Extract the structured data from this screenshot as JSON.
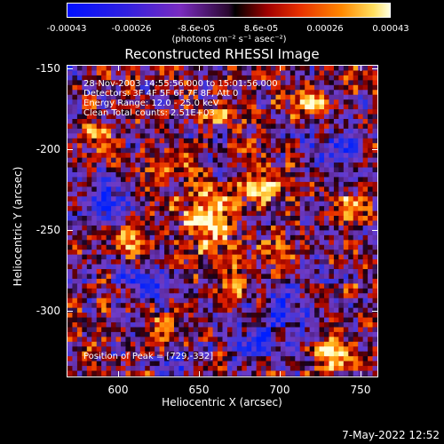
{
  "colorbar": {
    "ticks": [
      "-0.00043",
      "-0.00026",
      "-8.6e-05",
      "8.6e-05",
      "0.00026",
      "0.00043"
    ],
    "units": "(photons cm⁻² s⁻¹ asec⁻²)"
  },
  "title": "Reconstructed RHESSI Image",
  "info": {
    "time": "28-Nov-2003 14:55:56.000 to 15:01:56.000",
    "detectors": "Detectors: 3F 4F 5F 6F 7F 8F, Att 0",
    "energy": "Energy Range: 12.0 - 25.0 keV",
    "clean": "Clean     Total counts: 2.51E+03"
  },
  "peak": "Position of Peak = [729,-332]",
  "axes": {
    "xlabel": "Heliocentric X (arcsec)",
    "ylabel": "Heliocentric Y (arcsec)",
    "xticks": [
      "600",
      "650",
      "700",
      "750"
    ],
    "yticks": [
      "-150",
      "-200",
      "-250",
      "-300"
    ]
  },
  "footer": {
    "date": "7-May-2022 12:52"
  },
  "colors": {
    "low": "#0018ff",
    "mid_low": "#6a3cd0",
    "zero": "#3a1060",
    "mid": "#d01000",
    "high": "#ff8a00",
    "peak": "#ffffc0"
  }
}
